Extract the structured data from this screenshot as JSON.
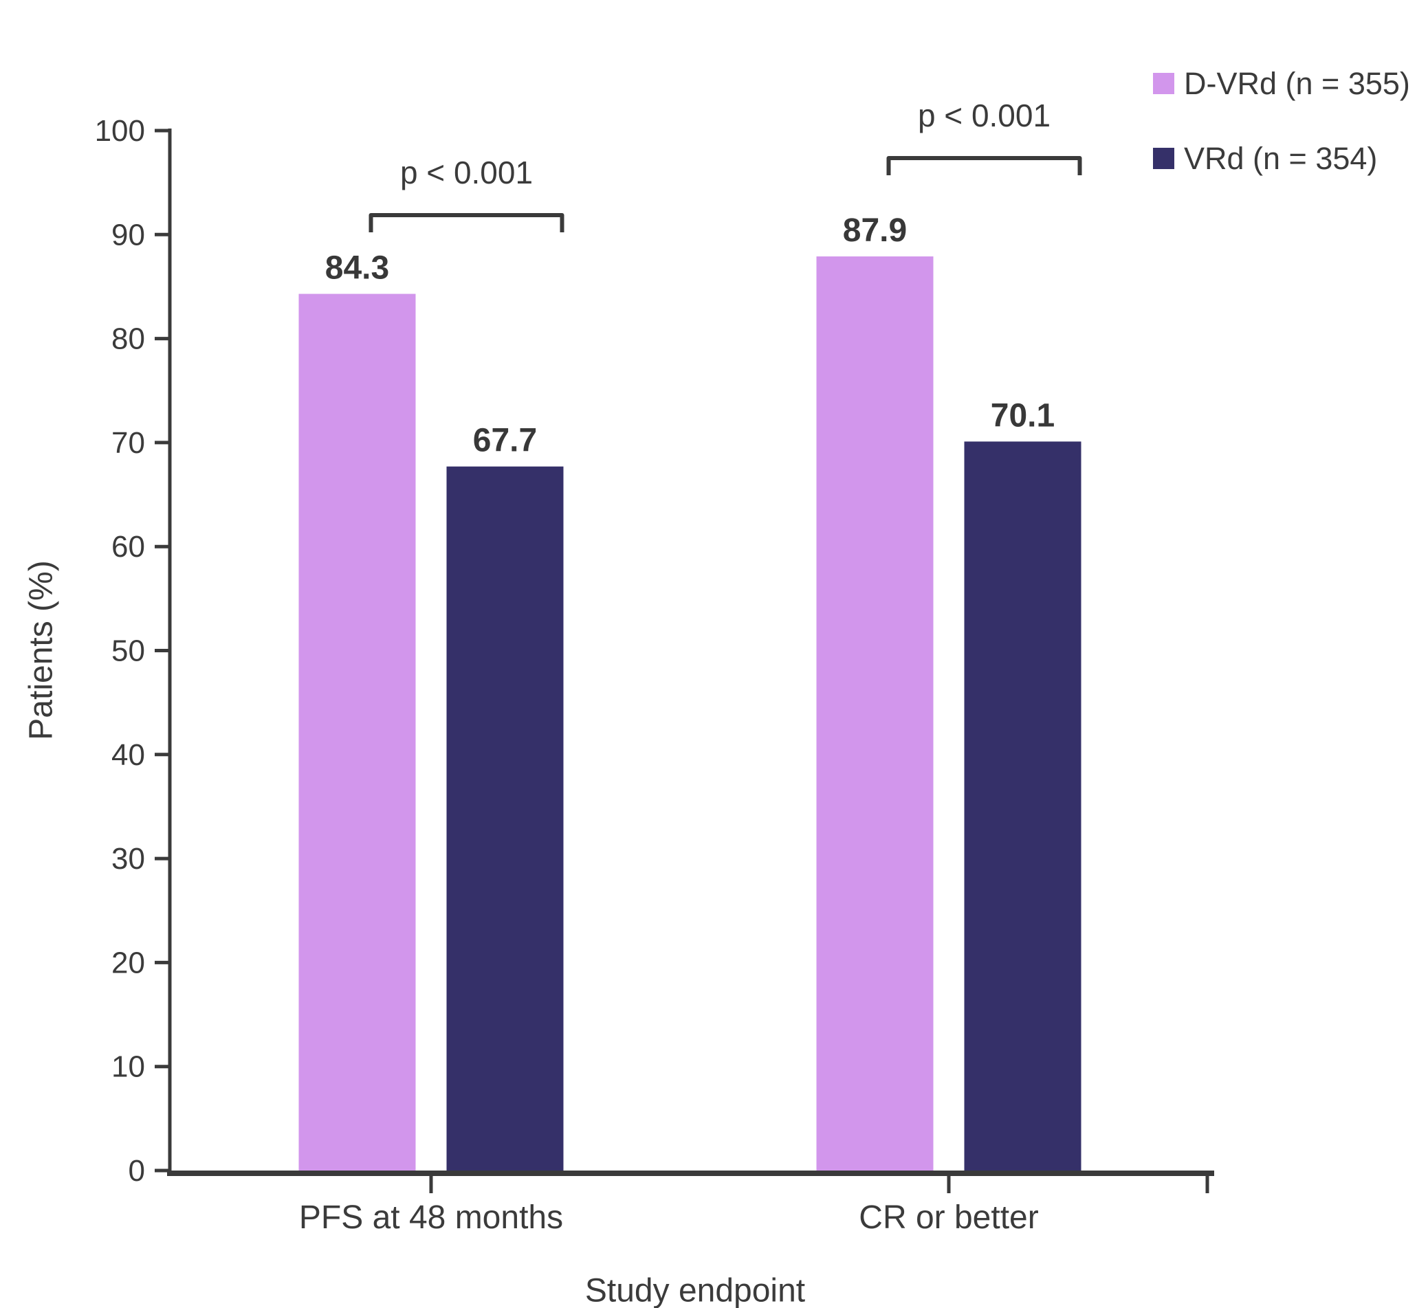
{
  "page": {
    "background_color": "#ffffff",
    "text_color": "#3b3b3b"
  },
  "legend": {
    "position": "top-right",
    "items": [
      {
        "label": "D-VRd (n = 355)",
        "color": "#d296ec"
      },
      {
        "label": "VRd (n = 354)",
        "color": "#353069"
      }
    ]
  },
  "chart_data": {
    "type": "bar",
    "title": "",
    "categories": [
      "PFS at 48 months",
      "CR or better"
    ],
    "series": [
      {
        "name": "D-VRd (n = 355)",
        "color": "#d296ec",
        "values": [
          84.3,
          87.9
        ]
      },
      {
        "name": "VRd (n = 354)",
        "color": "#353069",
        "values": [
          67.7,
          70.1
        ]
      }
    ],
    "p_values": [
      {
        "category": "PFS at 48 months",
        "label": "p < 0.001"
      },
      {
        "category": "CR or better",
        "label": "p < 0.001"
      }
    ],
    "xlabel": "Study endpoint",
    "ylabel": "Patients (%)",
    "ylim": [
      0,
      100
    ],
    "y_ticks": [
      0,
      10,
      20,
      30,
      40,
      50,
      60,
      70,
      80,
      90,
      100
    ],
    "grid": false,
    "legend_position": "top-right",
    "axis_color": "#3a3a3a",
    "text_color": "#3b3b3b"
  }
}
